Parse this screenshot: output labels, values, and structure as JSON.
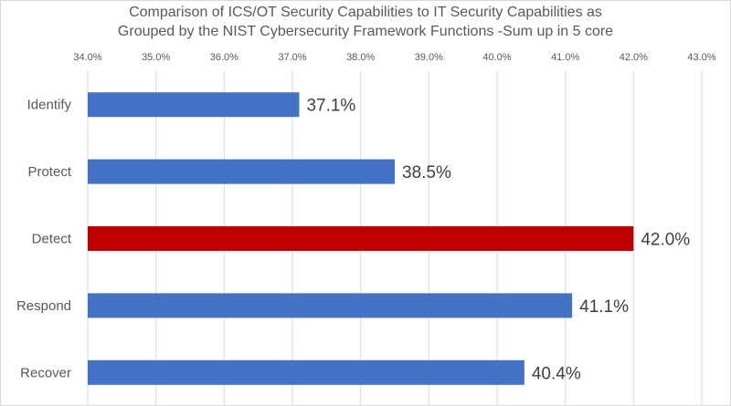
{
  "chart_data": {
    "type": "bar",
    "orientation": "horizontal",
    "title_lines": [
      "Comparison of ICS/OT Security Capabilities to IT Security Capabilities as",
      "Grouped by the NIST Cybersecurity Framework Functions -Sum up in 5 core"
    ],
    "categories": [
      "Identify",
      "Protect",
      "Detect",
      "Respond",
      "Recover"
    ],
    "values": [
      37.1,
      38.5,
      42.0,
      41.1,
      40.4
    ],
    "value_labels": [
      "37.1%",
      "38.5%",
      "42.0%",
      "41.1%",
      "40.4%"
    ],
    "x_ticks": [
      "34.0%",
      "35.0%",
      "36.0%",
      "37.0%",
      "38.0%",
      "39.0%",
      "40.0%",
      "41.0%",
      "42.0%",
      "43.0%"
    ],
    "xlim": [
      34,
      43
    ],
    "x_axis_position": "top",
    "grid": "vertical",
    "legend": "none",
    "colors": {
      "default_bar": "#4472c4",
      "highlight_bar": "#c00000",
      "gridline": "#d9d9d9",
      "tick_label": "#595959",
      "category_label": "#595959",
      "data_label": "#404040"
    },
    "highlight_category": "Detect"
  }
}
